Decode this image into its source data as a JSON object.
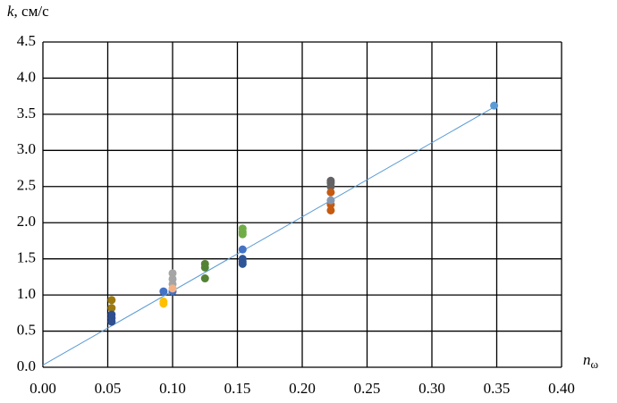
{
  "chart_data": {
    "type": "scatter",
    "ylabel": {
      "symbol": "k",
      "unit": ", см/с"
    },
    "xlabel": {
      "symbol": "n",
      "subscript": "ω"
    },
    "xlim": [
      0,
      0.4
    ],
    "ylim": [
      0,
      4.5
    ],
    "xticks": [
      {
        "value": 0,
        "label": "0.00"
      },
      {
        "value": 0.05,
        "label": "0.05"
      },
      {
        "value": 0.1,
        "label": "0.10"
      },
      {
        "value": 0.15,
        "label": "0.15"
      },
      {
        "value": 0.2,
        "label": "0.20"
      },
      {
        "value": 0.25,
        "label": "0.25"
      },
      {
        "value": 0.3,
        "label": "0.30"
      },
      {
        "value": 0.35,
        "label": "0.35"
      },
      {
        "value": 0.4,
        "label": "0.40"
      }
    ],
    "yticks": [
      {
        "value": 0,
        "label": "0.0"
      },
      {
        "value": 0.5,
        "label": "0.5"
      },
      {
        "value": 1,
        "label": "1.0"
      },
      {
        "value": 1.5,
        "label": "1.5"
      },
      {
        "value": 2,
        "label": "2.0"
      },
      {
        "value": 2.5,
        "label": "2.5"
      },
      {
        "value": 3,
        "label": "3.0"
      },
      {
        "value": 3.5,
        "label": "3.5"
      },
      {
        "value": 4,
        "label": "4.0"
      },
      {
        "value": 4.5,
        "label": "4.5"
      }
    ],
    "grid": true,
    "trendline": {
      "color": "#5b9bd5",
      "x": [
        0,
        0.35
      ],
      "values": [
        0.03,
        3.62
      ]
    },
    "series": [
      {
        "color": "#9c7a10",
        "x": [
          0.053,
          0.053
        ],
        "values": [
          0.93,
          0.82
        ]
      },
      {
        "color": "#2f4f8f",
        "x": [
          0.053,
          0.053,
          0.053
        ],
        "values": [
          0.73,
          0.68,
          0.63
        ]
      },
      {
        "color": "#4472c4",
        "x": [
          0.093,
          0.1,
          0.154
        ],
        "values": [
          1.05,
          1.05,
          1.63
        ]
      },
      {
        "color": "#ffc000",
        "x": [
          0.093,
          0.093
        ],
        "values": [
          0.91,
          0.88
        ]
      },
      {
        "color": "#a5a5a5",
        "x": [
          0.1,
          0.1,
          0.1
        ],
        "values": [
          1.3,
          1.22,
          1.15
        ]
      },
      {
        "color": "#f4b183",
        "x": [
          0.1
        ],
        "values": [
          1.09
        ]
      },
      {
        "color": "#548235",
        "x": [
          0.125,
          0.125,
          0.125
        ],
        "values": [
          1.43,
          1.38,
          1.23
        ]
      },
      {
        "color": "#70ad47",
        "x": [
          0.154,
          0.154,
          0.154
        ],
        "values": [
          1.92,
          1.87,
          1.84
        ]
      },
      {
        "color": "#2f5597",
        "x": [
          0.154,
          0.154,
          0.154
        ],
        "values": [
          1.5,
          1.46,
          1.43
        ]
      },
      {
        "color": "#636363",
        "x": [
          0.222,
          0.222,
          0.222
        ],
        "values": [
          2.58,
          2.55,
          2.5
        ]
      },
      {
        "color": "#c55a11",
        "x": [
          0.222,
          0.222,
          0.222
        ],
        "values": [
          2.42,
          2.25,
          2.17
        ]
      },
      {
        "color": "#8497b0",
        "x": [
          0.222
        ],
        "values": [
          2.31
        ]
      },
      {
        "color": "#5b9bd5",
        "x": [
          0.348
        ],
        "values": [
          3.62
        ]
      }
    ]
  }
}
